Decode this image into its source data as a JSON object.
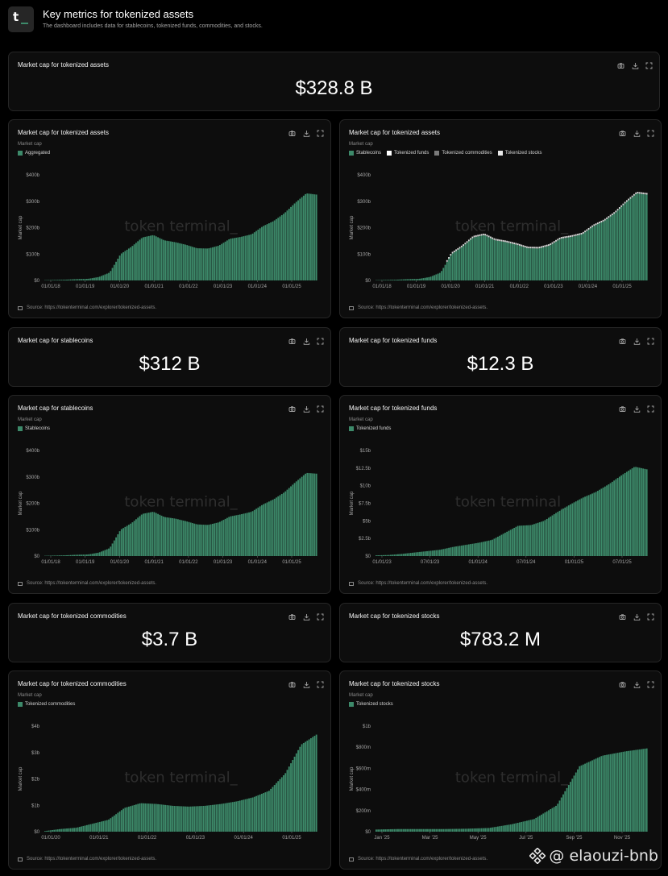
{
  "header": {
    "logo_text": "t",
    "title": "Key metrics for tokenized assets",
    "subtitle": "The dashboard includes data for stablecoins, tokenized funds, commodities, and stocks."
  },
  "source_text": "Source: https://tokenterminal.com/explorer/tokenized-assets.",
  "metric_axis_label": "Market cap",
  "chart_watermark": "token terminal_",
  "colors": {
    "accent": "#3d8a6a",
    "background": "#000000",
    "card": "#0d0d0d",
    "border": "#262626"
  },
  "icons": [
    "camera-icon",
    "download-icon",
    "expand-icon"
  ],
  "cards": {
    "total": {
      "title": "Market cap for tokenized assets",
      "value": "$328.8 B"
    },
    "stablecoins": {
      "title": "Market cap for stablecoins",
      "value": "$312 B"
    },
    "funds": {
      "title": "Market cap for tokenized funds",
      "value": "$12.3 B"
    },
    "commodities": {
      "title": "Market cap for tokenized commodities",
      "value": "$3.7 B"
    },
    "stocks": {
      "title": "Market cap for tokenized stocks",
      "value": "$783.2 M"
    }
  },
  "watermark": {
    "text": "@ elaouzi-bnb"
  },
  "chart_data": [
    {
      "id": "c1",
      "type": "bar",
      "title": "Market cap for tokenized assets",
      "ylabel": "Market cap",
      "series": [
        {
          "name": "Aggregated",
          "color": "#3d8a6a"
        }
      ],
      "x": [
        "2018-01",
        "2019-01",
        "2019-07",
        "2020-01",
        "2020-03",
        "2020-07",
        "2021-01",
        "2021-05",
        "2021-09",
        "2022-01",
        "2022-04",
        "2022-07",
        "2022-11",
        "2023-03",
        "2023-07",
        "2023-10",
        "2024-01",
        "2024-04",
        "2024-07",
        "2024-10",
        "2025-01",
        "2025-04",
        "2025-07",
        "2025-09",
        "2025-10",
        "2025-11"
      ],
      "y": [
        1,
        2,
        3,
        5,
        6,
        13,
        30,
        100,
        128,
        163,
        172,
        152,
        145,
        135,
        122,
        121,
        132,
        158,
        165,
        175,
        205,
        225,
        255,
        295,
        330,
        325
      ],
      "xticks": [
        "01/01/18",
        "01/01/19",
        "01/01/20",
        "01/01/21",
        "01/01/22",
        "01/01/23",
        "01/01/24",
        "01/01/25"
      ],
      "yticks": [
        "$0",
        "$100b",
        "$200b",
        "$300b",
        "$400b"
      ],
      "ylim": [
        0,
        400
      ],
      "unit": "b"
    },
    {
      "id": "c2",
      "type": "bar",
      "stacked": true,
      "title": "Market cap for tokenized assets",
      "ylabel": "Market cap",
      "series": [
        {
          "name": "Stablecoins",
          "color": "#3d8a6a"
        },
        {
          "name": "Tokenized funds",
          "color": "#ffffff"
        },
        {
          "name": "Tokenized commodities",
          "color": "#7a7a7a"
        },
        {
          "name": "Tokenized stocks",
          "color": "#e8e8e8"
        }
      ],
      "x": [
        "2018-01",
        "2019-01",
        "2019-07",
        "2020-01",
        "2020-03",
        "2020-07",
        "2021-01",
        "2021-05",
        "2021-09",
        "2022-01",
        "2022-04",
        "2022-07",
        "2022-11",
        "2023-03",
        "2023-07",
        "2023-10",
        "2024-01",
        "2024-04",
        "2024-07",
        "2024-10",
        "2025-01",
        "2025-04",
        "2025-07",
        "2025-09",
        "2025-10",
        "2025-11"
      ],
      "y": [
        1,
        2,
        3,
        5,
        6,
        13,
        30,
        100,
        128,
        163,
        172,
        152,
        145,
        135,
        122,
        121,
        132,
        158,
        165,
        175,
        205,
        225,
        255,
        295,
        330,
        325
      ],
      "xticks": [
        "01/01/18",
        "01/01/19",
        "01/01/20",
        "01/01/21",
        "01/01/22",
        "01/01/23",
        "01/01/24",
        "01/01/25"
      ],
      "yticks": [
        "$0",
        "$100b",
        "$200b",
        "$300b",
        "$400b"
      ],
      "ylim": [
        0,
        400
      ],
      "unit": "b"
    },
    {
      "id": "c3",
      "type": "bar",
      "title": "Market cap for stablecoins",
      "ylabel": "Market cap",
      "series": [
        {
          "name": "Stablecoins",
          "color": "#3d8a6a"
        }
      ],
      "x": [
        "2018-01",
        "2019-01",
        "2019-07",
        "2020-01",
        "2020-03",
        "2020-07",
        "2021-01",
        "2021-05",
        "2021-09",
        "2022-01",
        "2022-04",
        "2022-07",
        "2022-11",
        "2023-03",
        "2023-07",
        "2023-10",
        "2024-01",
        "2024-04",
        "2024-07",
        "2024-10",
        "2025-01",
        "2025-04",
        "2025-07",
        "2025-09",
        "2025-10",
        "2025-11"
      ],
      "y": [
        1,
        2,
        3,
        5,
        6,
        13,
        30,
        100,
        125,
        160,
        168,
        148,
        142,
        132,
        120,
        118,
        128,
        150,
        158,
        168,
        195,
        215,
        242,
        280,
        315,
        312
      ],
      "xticks": [
        "01/01/18",
        "01/01/19",
        "01/01/20",
        "01/01/21",
        "01/01/22",
        "01/01/23",
        "01/01/24",
        "01/01/25"
      ],
      "yticks": [
        "$0",
        "$100b",
        "$200b",
        "$300b",
        "$400b"
      ],
      "ylim": [
        0,
        400
      ],
      "unit": "b"
    },
    {
      "id": "c4",
      "type": "bar",
      "title": "Market cap for tokenized funds",
      "ylabel": "Market cap",
      "series": [
        {
          "name": "Tokenized funds",
          "color": "#3d8a6a"
        }
      ],
      "x": [
        "2023-01",
        "2023-04",
        "2023-07",
        "2023-10",
        "2024-01",
        "2024-03",
        "2024-05",
        "2024-07",
        "2024-09",
        "2024-11",
        "2024-12",
        "2025-01",
        "2025-02",
        "2025-03",
        "2025-04",
        "2025-05",
        "2025-06",
        "2025-07",
        "2025-08",
        "2025-09",
        "2025-10",
        "2025-11"
      ],
      "y": [
        0.1,
        0.15,
        0.3,
        0.5,
        0.7,
        0.9,
        1.3,
        1.6,
        1.9,
        2.3,
        3.3,
        4.3,
        4.4,
        5,
        6.2,
        7.3,
        8.3,
        9.1,
        10.2,
        11.5,
        12.7,
        12.3
      ],
      "xticks": [
        "01/01/23",
        "07/01/23",
        "01/01/24",
        "07/01/24",
        "01/01/25",
        "07/01/25"
      ],
      "yticks": [
        "$0",
        "$2.5b",
        "$5b",
        "$7.5b",
        "$10b",
        "$12.5b",
        "$15b"
      ],
      "ylim": [
        0,
        15
      ],
      "unit": "b"
    },
    {
      "id": "c5",
      "type": "bar",
      "title": "Market cap for tokenized commodities",
      "ylabel": "Market cap",
      "series": [
        {
          "name": "Tokenized commodities",
          "color": "#3d8a6a"
        }
      ],
      "x": [
        "2020-01",
        "2020-07",
        "2021-01",
        "2021-07",
        "2021-10",
        "2022-01",
        "2022-03",
        "2022-07",
        "2023-01",
        "2023-07",
        "2024-01",
        "2024-07",
        "2025-01",
        "2025-04",
        "2025-07",
        "2025-09",
        "2025-10",
        "2025-11"
      ],
      "y": [
        0.02,
        0.1,
        0.15,
        0.3,
        0.45,
        0.9,
        1.08,
        1.05,
        0.98,
        0.95,
        0.98,
        1.05,
        1.15,
        1.3,
        1.55,
        2.2,
        3.3,
        3.7
      ],
      "xticks": [
        "01/01/20",
        "01/01/21",
        "01/01/22",
        "01/01/23",
        "01/01/24",
        "01/01/25"
      ],
      "yticks": [
        "$0",
        "$1b",
        "$2b",
        "$3b",
        "$4b"
      ],
      "ylim": [
        0,
        4
      ],
      "unit": "b"
    },
    {
      "id": "c6",
      "type": "bar",
      "title": "Market cap for tokenized stocks",
      "ylabel": "Market cap",
      "series": [
        {
          "name": "Tokenized stocks",
          "color": "#3d8a6a"
        }
      ],
      "x": [
        "2025-01",
        "2025-02",
        "2025-03",
        "2025-04",
        "2025-05",
        "2025-06",
        "2025-07",
        "2025-08",
        "2025-08b",
        "2025-09",
        "2025-10",
        "2025-11",
        "2025-12"
      ],
      "y": [
        20,
        25,
        25,
        25,
        28,
        35,
        70,
        120,
        250,
        620,
        720,
        760,
        790
      ],
      "xticks": [
        "Jan '25",
        "Mar '25",
        "May '25",
        "Jul '25",
        "Sep '25",
        "Nov '25"
      ],
      "yticks": [
        "$0",
        "$200m",
        "$400m",
        "$600m",
        "$800m",
        "$1b"
      ],
      "ylim": [
        0,
        1000
      ],
      "unit": "m"
    }
  ]
}
